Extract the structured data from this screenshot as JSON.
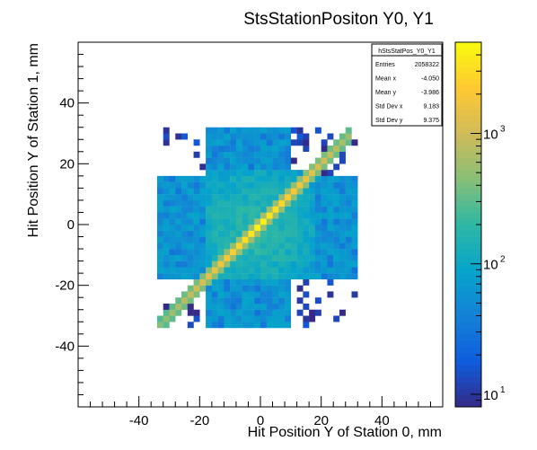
{
  "chart_data": {
    "type": "heatmap",
    "title": "StsStationPositon Y0, Y1",
    "xlabel": "Hit Position Y of Station 0, mm",
    "ylabel": "Hit Position Y of Station 1, mm",
    "xlim": [
      -60,
      60
    ],
    "ylim": [
      -60,
      60
    ],
    "xticks": [
      -40,
      -20,
      0,
      20,
      40
    ],
    "yticks": [
      -40,
      -20,
      0,
      20,
      40
    ],
    "xtick_labels": [
      "-40",
      "-20",
      "0",
      "20",
      "40"
    ],
    "ytick_labels": [
      "-40",
      "-20",
      "0",
      "20",
      "40"
    ],
    "z_scale": "log",
    "zlim": [
      8,
      5000
    ],
    "colorbar_ticks": [
      10,
      100,
      1000
    ],
    "colorbar_tick_labels": [
      "10",
      "10",
      "10"
    ],
    "colorbar_tick_exponents": [
      "1",
      "2",
      "3"
    ],
    "grid": false,
    "bin_size": 2,
    "regions": {
      "diagonal": {
        "x_range": [
          -34,
          30
        ],
        "relation": "y = x",
        "peak_count": 4500,
        "edge_count": 400
      },
      "central_box": {
        "x_range": [
          -18,
          18
        ],
        "y_range": [
          -18,
          18
        ],
        "count": 200
      },
      "vertical_band": {
        "x_range": [
          -18,
          10
        ],
        "y_range": [
          -34,
          32
        ],
        "count": 60
      },
      "horizontal_band": {
        "x_range": [
          -34,
          32
        ],
        "y_range": [
          -18,
          16
        ],
        "count": 60
      },
      "outer_scatter": {
        "x_range": [
          -34,
          32
        ],
        "y_range": [
          -34,
          32
        ],
        "count": 12
      }
    },
    "stats": {
      "name": "hStsStatPos_Y0_Y1",
      "rows": [
        {
          "label": "Entries",
          "value": "2058322"
        },
        {
          "label": "Mean x",
          "value": "-4.050"
        },
        {
          "label": "Mean y",
          "value": "-3.986"
        },
        {
          "label": "Std Dev x",
          "value": "9.183"
        },
        {
          "label": "Std Dev y",
          "value": "9.375"
        }
      ]
    },
    "colormap": [
      "#352a87",
      "#0f5cdd",
      "#1481d6",
      "#06a4ca",
      "#2eb7a4",
      "#87bf77",
      "#d1bb59",
      "#fec832",
      "#f9fb0e"
    ]
  }
}
